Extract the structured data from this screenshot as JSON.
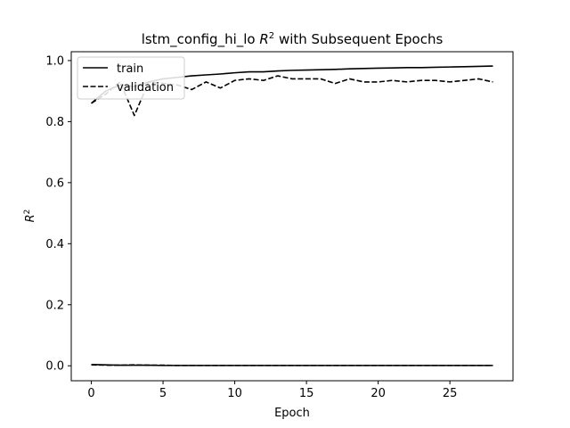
{
  "chart_data": {
    "type": "line",
    "title_main": "lstm_config_hi_lo ",
    "title_math": "R",
    "title_sup": "2",
    "title_tail": " with Subsequent Epochs",
    "xlabel": "Epoch",
    "ylabel_math": "R",
    "ylabel_sup": "2",
    "xlim": [
      -1.4,
      29.4
    ],
    "ylim": [
      -0.049,
      1.029
    ],
    "xticks": [
      0,
      5,
      10,
      15,
      20,
      25
    ],
    "yticks": [
      0.0,
      0.2,
      0.4,
      0.6,
      0.8,
      1.0
    ],
    "ytick_labels": [
      "0.0",
      "0.2",
      "0.4",
      "0.6",
      "0.8",
      "1.0"
    ],
    "legend_position": "upper left",
    "x": [
      0,
      1,
      2,
      3,
      4,
      5,
      6,
      7,
      8,
      9,
      10,
      11,
      12,
      13,
      14,
      15,
      16,
      17,
      18,
      19,
      20,
      21,
      22,
      23,
      24,
      25,
      26,
      27,
      28
    ],
    "series": [
      {
        "name": "train",
        "style": "solid",
        "color": "#000000",
        "values": [
          0.86,
          0.9,
          0.92,
          0.915,
          0.93,
          0.94,
          0.945,
          0.95,
          0.953,
          0.956,
          0.96,
          0.963,
          0.963,
          0.966,
          0.968,
          0.969,
          0.97,
          0.971,
          0.973,
          0.974,
          0.975,
          0.976,
          0.977,
          0.977,
          0.978,
          0.979,
          0.98,
          0.981,
          0.982
        ]
      },
      {
        "name": "validation",
        "style": "dashed",
        "color": "#000000",
        "values": [
          0.86,
          0.89,
          0.93,
          0.82,
          0.93,
          0.925,
          0.92,
          0.905,
          0.93,
          0.91,
          0.935,
          0.94,
          0.935,
          0.95,
          0.94,
          0.94,
          0.94,
          0.925,
          0.94,
          0.93,
          0.93,
          0.935,
          0.93,
          0.935,
          0.935,
          0.93,
          0.935,
          0.94,
          0.93
        ]
      },
      {
        "name": "",
        "style": "solid",
        "color": "#000000",
        "values": [
          0.004,
          0.003,
          0.002,
          0.002,
          0.002,
          0.001,
          0.001,
          0.001,
          0.001,
          0.001,
          0.001,
          0.001,
          0.001,
          0.001,
          0.001,
          0.001,
          0.001,
          0.001,
          0.001,
          0.001,
          0.001,
          0.001,
          0.001,
          0.001,
          0.001,
          0.001,
          0.001,
          0.001,
          0.001
        ]
      },
      {
        "name": "",
        "style": "dashed",
        "color": "#000000",
        "values": [
          0.003,
          0.002,
          0.002,
          0.003,
          0.002,
          0.002,
          0.001,
          0.001,
          0.001,
          0.001,
          0.001,
          0.001,
          0.001,
          0.001,
          0.001,
          0.001,
          0.001,
          0.001,
          0.001,
          0.001,
          0.001,
          0.001,
          0.001,
          0.001,
          0.001,
          0.001,
          0.001,
          0.001,
          0.001
        ]
      }
    ]
  }
}
